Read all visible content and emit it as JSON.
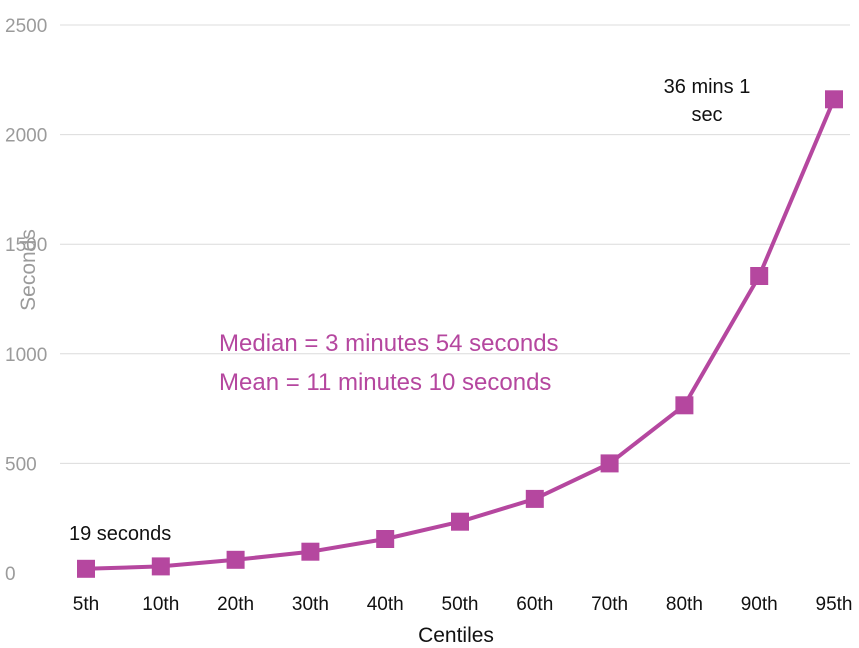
{
  "chart_data": {
    "type": "line",
    "categories": [
      "5th",
      "10th",
      "20th",
      "30th",
      "40th",
      "50th",
      "60th",
      "70th",
      "80th",
      "90th",
      "95th"
    ],
    "series": [
      {
        "values": [
          19,
          30,
          60,
          97,
          155,
          234,
          338,
          500,
          765,
          1355,
          2161
        ]
      }
    ],
    "xlabel": "Centiles",
    "ylabel": "Seconds",
    "ylim": [
      0,
      2500
    ],
    "yticks": [
      0,
      500,
      1000,
      1500,
      2000,
      2500
    ],
    "grid": true,
    "annotations": {
      "first_point": "19 seconds",
      "last_point_line1": "36 mins 1",
      "last_point_line2": "sec",
      "median": "Median = 3 minutes 54 seconds",
      "mean": "Mean = 11 minutes 10 seconds"
    },
    "colors": {
      "series": "#b5479f",
      "grid": "#dcdcdc",
      "tick_y": "#9b9b9b",
      "tick_x": "#111111",
      "stat_text": "#b5479f"
    }
  }
}
